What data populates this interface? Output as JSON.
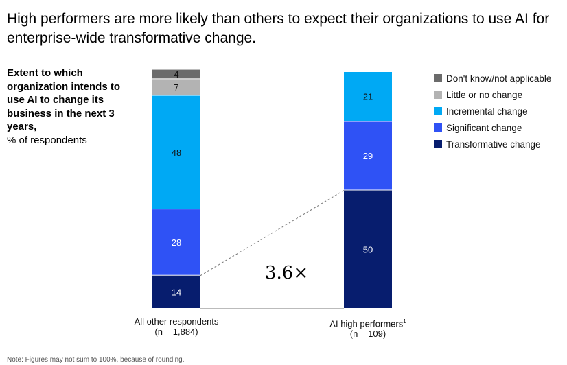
{
  "title": "High performers are more likely than others to expect their organizations to use AI for enterprise-wide transformative change.",
  "subtitle": {
    "bold": "Extent to which organization intends to use AI to change its business in the next 3 years,",
    "regular": "% of respondents"
  },
  "note": "Note: Figures may not sum to 100%, because of rounding.",
  "multiplier": "3.6×",
  "chart_data": {
    "type": "bar",
    "stacked": true,
    "categories": [
      "All other respondents",
      "AI high performers"
    ],
    "category_labels": [
      {
        "name": "All other respondents",
        "n": "(n = 1,884)",
        "sup": ""
      },
      {
        "name": "AI high performers",
        "n": "(n = 109)",
        "sup": "1"
      }
    ],
    "series": [
      {
        "name": "Transformative change",
        "color": "#071d6e",
        "values": [
          14,
          50
        ]
      },
      {
        "name": "Significant change",
        "color": "#2f52f5",
        "values": [
          28,
          29
        ]
      },
      {
        "name": "Incremental change",
        "color": "#00a9f4",
        "values": [
          48,
          21
        ]
      },
      {
        "name": "Little or no change",
        "color": "#b3b3b3",
        "values": [
          7,
          null
        ]
      },
      {
        "name": "Don't know/not applicable",
        "color": "#6b6b6b",
        "values": [
          4,
          null
        ]
      }
    ],
    "legend_order": [
      "Don't know/not applicable",
      "Little or no change",
      "Incremental change",
      "Significant change",
      "Transformative change"
    ],
    "legend_position": "top-right",
    "grid": false
  }
}
